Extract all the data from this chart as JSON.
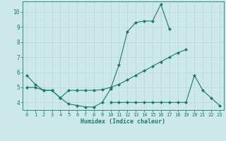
{
  "xlabel": "Humidex (Indice chaleur)",
  "x": [
    0,
    1,
    2,
    3,
    4,
    5,
    6,
    7,
    8,
    9,
    10,
    11,
    12,
    13,
    14,
    15,
    16,
    17,
    18,
    19,
    20,
    21,
    22,
    23
  ],
  "line1": [
    5.8,
    5.2,
    4.8,
    4.8,
    4.3,
    3.9,
    3.8,
    3.7,
    3.7,
    4.0,
    4.9,
    6.5,
    8.7,
    9.3,
    9.4,
    9.4,
    10.5,
    8.9,
    null,
    null,
    null,
    null,
    null,
    null
  ],
  "line2": [
    5.0,
    5.0,
    4.8,
    4.8,
    4.3,
    4.8,
    4.8,
    4.8,
    4.8,
    4.85,
    5.0,
    5.2,
    5.5,
    5.8,
    6.1,
    6.4,
    6.7,
    7.0,
    7.3,
    7.5,
    null,
    null,
    null,
    null
  ],
  "line3": [
    null,
    null,
    null,
    null,
    null,
    null,
    null,
    null,
    null,
    null,
    4.0,
    4.0,
    4.0,
    4.0,
    4.0,
    4.0,
    4.0,
    4.0,
    4.0,
    4.0,
    5.8,
    4.8,
    4.3,
    3.8
  ],
  "line_color": "#1a7a6e",
  "bg_color": "#cde8e8",
  "grid_color": "#b8d8d8",
  "ylim": [
    3.5,
    10.7
  ],
  "xlim": [
    -0.5,
    23.5
  ],
  "yticks": [
    4,
    5,
    6,
    7,
    8,
    9,
    10
  ],
  "xticks": [
    0,
    1,
    2,
    3,
    4,
    5,
    6,
    7,
    8,
    9,
    10,
    11,
    12,
    13,
    14,
    15,
    16,
    17,
    18,
    19,
    20,
    21,
    22,
    23
  ]
}
